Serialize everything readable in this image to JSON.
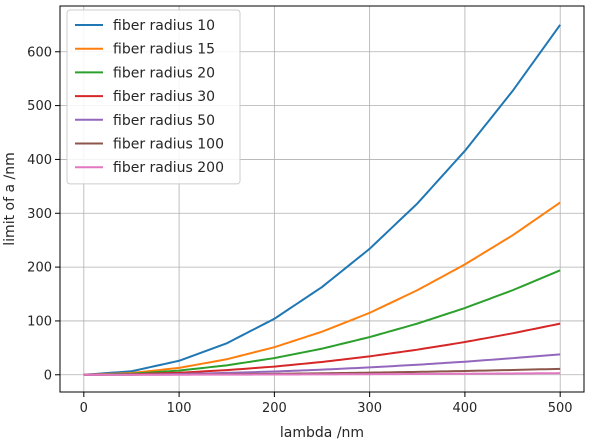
{
  "chart_data": {
    "type": "line",
    "xlabel": "lambda /nm",
    "ylabel": "limit of a /nm",
    "xlim": [
      -25,
      525
    ],
    "ylim": [
      -32,
      685
    ],
    "x_ticks": [
      0,
      100,
      200,
      300,
      400,
      500
    ],
    "y_ticks": [
      0,
      100,
      200,
      300,
      400,
      500,
      600
    ],
    "grid": true,
    "legend_position": "top-left",
    "series": [
      {
        "name": "fiber radius 10",
        "color": "#1f77b4",
        "x": [
          0,
          50,
          100,
          150,
          200,
          250,
          300,
          350,
          400,
          450,
          500
        ],
        "y": [
          0,
          6.5,
          26,
          58.5,
          104,
          163,
          234,
          318,
          416,
          527,
          650
        ]
      },
      {
        "name": "fiber radius 15",
        "color": "#ff7f0e",
        "x": [
          0,
          50,
          100,
          150,
          200,
          250,
          300,
          350,
          400,
          450,
          500
        ],
        "y": [
          0,
          3.2,
          12.8,
          28.8,
          51.2,
          80,
          115,
          157,
          205,
          259,
          320
        ]
      },
      {
        "name": "fiber radius 20",
        "color": "#2ca02c",
        "x": [
          0,
          50,
          100,
          150,
          200,
          250,
          300,
          350,
          400,
          450,
          500
        ],
        "y": [
          0,
          1.9,
          7.8,
          17.5,
          31,
          48.5,
          70,
          95,
          124,
          157,
          194
        ]
      },
      {
        "name": "fiber radius 30",
        "color": "#d62728",
        "x": [
          0,
          50,
          100,
          150,
          200,
          250,
          300,
          350,
          400,
          450,
          500
        ],
        "y": [
          0,
          0.95,
          3.8,
          8.6,
          15.2,
          23.8,
          34.2,
          46.6,
          60.8,
          77,
          95
        ]
      },
      {
        "name": "fiber radius 50",
        "color": "#9467bd",
        "x": [
          0,
          50,
          100,
          150,
          200,
          250,
          300,
          350,
          400,
          450,
          500
        ],
        "y": [
          0,
          0.38,
          1.52,
          3.42,
          6.08,
          9.5,
          13.7,
          18.6,
          24.3,
          30.8,
          38
        ]
      },
      {
        "name": "fiber radius 100",
        "color": "#8c564b",
        "x": [
          0,
          50,
          100,
          150,
          200,
          250,
          300,
          350,
          400,
          450,
          500
        ],
        "y": [
          0,
          0.11,
          0.44,
          0.99,
          1.76,
          2.75,
          3.96,
          5.39,
          7.04,
          8.91,
          11
        ]
      },
      {
        "name": "fiber radius 200",
        "color": "#e377c2",
        "x": [
          0,
          50,
          100,
          150,
          200,
          250,
          300,
          350,
          400,
          450,
          500
        ],
        "y": [
          0,
          0.03,
          0.12,
          0.27,
          0.48,
          0.75,
          1.08,
          1.47,
          1.92,
          2.43,
          3
        ]
      }
    ]
  }
}
